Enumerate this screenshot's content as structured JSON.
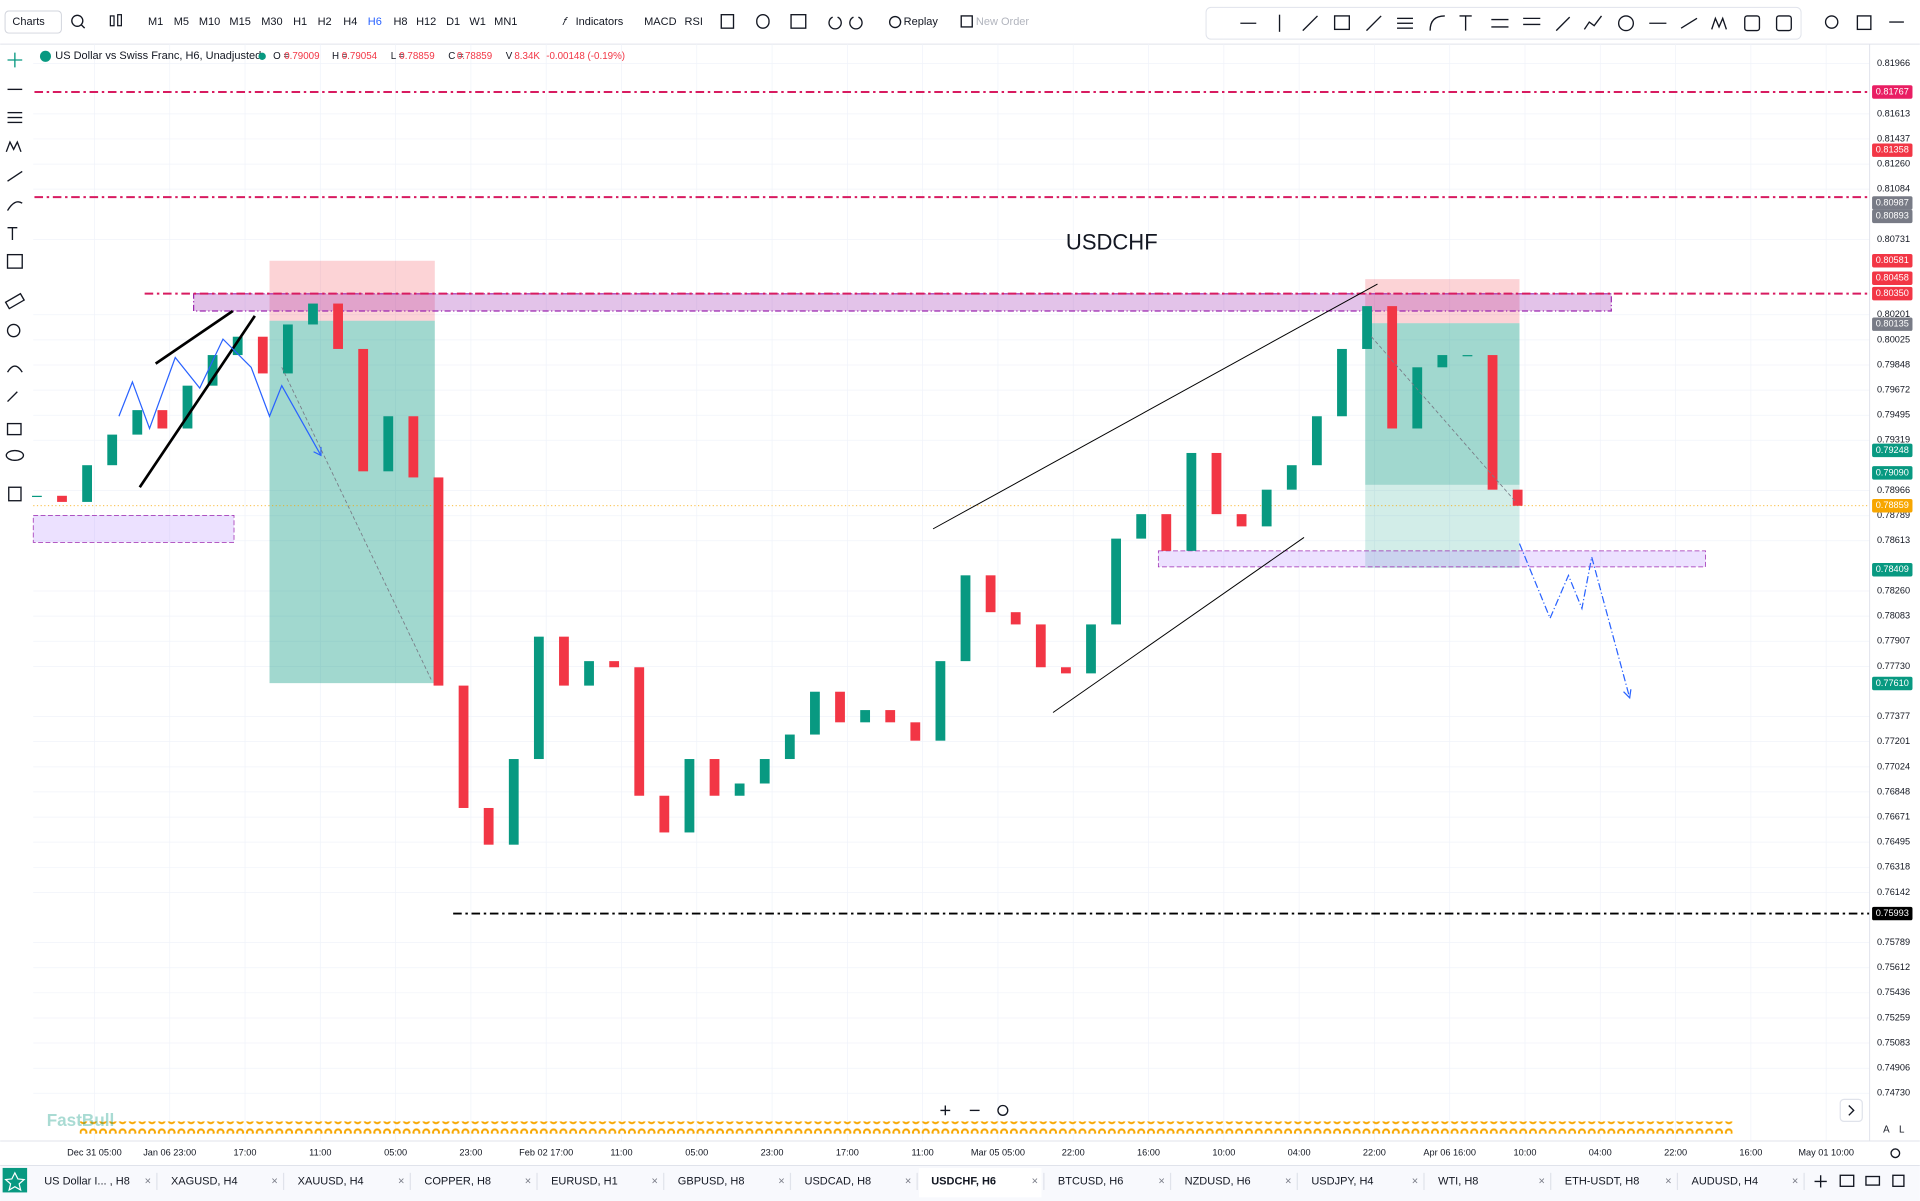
{
  "toolbar": {
    "charts": "Charts",
    "timeframes": [
      "M1",
      "M5",
      "M10",
      "M15",
      "M30",
      "H1",
      "H2",
      "H4",
      "H6",
      "H8",
      "H12",
      "D1",
      "W1",
      "MN1"
    ],
    "active_timeframe": "H6",
    "indicators": "Indicators",
    "studies": [
      "MACD",
      "RSI"
    ],
    "replay": "Replay",
    "new_order": "New Order"
  },
  "header": {
    "symbol": "US Dollar vs Swiss Franc, H6, Unadjusted",
    "open_label": "O =",
    "open": "0.79009",
    "high_label": "H =",
    "high": "0.79054",
    "low_label": "L =",
    "low": "0.78859",
    "close_label": "C =",
    "close": "0.78859",
    "volume_label": "V",
    "volume": "8.34K",
    "change": "-0.00148 (-0.19%)"
  },
  "chart": {
    "type": "candlestick",
    "title": "USDCHF",
    "up_color": "#089981",
    "down_color": "#f23645",
    "close": [
      0.78929,
      0.78886,
      0.79144,
      0.79359,
      0.79531,
      0.79402,
      0.79703,
      0.79918,
      0.80047,
      0.79789,
      0.80133,
      0.8028,
      0.79961,
      0.79101,
      0.79488,
      0.79058,
      0.77595,
      0.76735,
      0.76477,
      0.77079,
      0.77939,
      0.77595,
      0.77767,
      0.77724,
      0.76821,
      0.76563,
      0.77079,
      0.76821,
      0.76907,
      0.77079,
      0.77251,
      0.77552,
      0.77337,
      0.77423,
      0.77337,
      0.77208,
      0.77767,
      0.7837,
      0.78111,
      0.78025,
      0.77724,
      0.77681,
      0.78025,
      0.78628,
      0.788,
      0.78542,
      0.7923,
      0.788,
      0.78714,
      0.78972,
      0.79144,
      0.79488,
      0.79961,
      0.80262,
      0.79402,
      0.79832,
      0.79918,
      0.79918,
      0.78972,
      0.78859
    ],
    "ylim": [
      0.7473,
      0.81966
    ],
    "yticks": [
      0.81966,
      0.81613,
      0.81437,
      {
        "value": 0.8126,
        "label": "0.81260"
      },
      0.81084,
      0.80731,
      0.80201,
      0.80025,
      0.79848,
      0.79672,
      0.79495,
      0.79319,
      0.78966,
      0.78789,
      0.78613,
      {
        "value": 0.7826,
        "label": "0.78260"
      },
      0.78083,
      0.77907,
      {
        "value": 0.7773,
        "label": "0.77730"
      },
      0.77377,
      0.77201,
      0.77024,
      0.76848,
      0.76671,
      0.76495,
      0.76318,
      0.76142,
      0.75789,
      0.75612,
      0.75436,
      0.75259,
      0.75083,
      0.74906,
      {
        "value": 0.7473,
        "label": "0.74730"
      }
    ],
    "grid": true,
    "price_markers": [
      {
        "value": 0.81767,
        "color": "#e91e63"
      },
      {
        "value": 0.81358,
        "color": "#f23645"
      },
      {
        "value": 0.80987,
        "color": "#787b86"
      },
      {
        "value": 0.80893,
        "color": "#787b86"
      },
      {
        "value": 0.80581,
        "color": "#f23645"
      },
      {
        "value": 0.80458,
        "color": "#f23645"
      },
      {
        "value": {
          "value": 0.8035,
          "label": "0.80350"
        },
        "color": "#f23645"
      },
      {
        "value": 0.80135,
        "color": "#787b86"
      },
      {
        "value": 0.79248,
        "color": "#089981"
      },
      {
        "value": {
          "value": 0.7909,
          "label": "0.79090"
        },
        "color": "#089981"
      },
      {
        "value": 0.78859,
        "color": "#f7a600"
      },
      {
        "value": 0.78409,
        "color": "#089981"
      },
      {
        "value": {
          "value": 0.7761,
          "label": "0.77610"
        },
        "color": "#089981"
      },
      {
        "value": 0.75993,
        "color": "#000000"
      }
    ],
    "horizontal_lines": [
      {
        "value": 0.81767,
        "color": "#d81b60"
      },
      {
        "value": 0.81028,
        "color": "#d81b60"
      },
      {
        "value": 0.8035,
        "color": "#d81b60"
      },
      {
        "value": 0.75993,
        "color": "#000000"
      }
    ],
    "x_labels": [
      "Dec 31 05:00",
      "Jan 06 23:00",
      "17:00",
      "11:00",
      "05:00",
      "23:00",
      "Feb 02 17:00",
      "11:00",
      "05:00",
      "23:00",
      "17:00",
      "11:00",
      "Mar 05 05:00",
      "22:00",
      "16:00",
      "10:00",
      "04:00",
      "22:00",
      "Apr 06 16:00",
      "10:00",
      "04:00",
      "22:00",
      "16:00",
      "May 01 10:00"
    ]
  },
  "watermark": "FastBull",
  "axis_buttons": [
    "A",
    "L"
  ],
  "tabs": [
    "US Dollar I... , H8",
    "XAGUSD, H4",
    "XAUUSD, H4",
    "COPPER, H8",
    "EURUSD, H1",
    "GBPUSD, H8",
    "USDCAD, H8",
    "USDCHF, H6",
    "BTCUSD, H6",
    "NZDUSD, H6",
    "USDJPY, H4",
    "WTI, H8",
    "ETH-USDT, H8",
    "AUDUSD, H4"
  ],
  "active_tab": 7
}
